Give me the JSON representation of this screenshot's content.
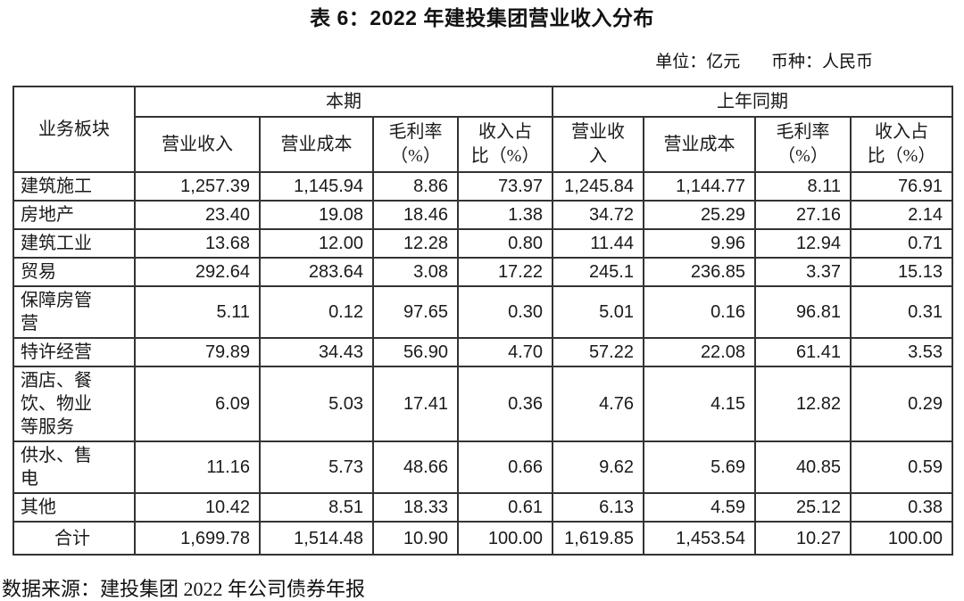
{
  "page": {
    "title": "表 6：2022 年建投集团营业收入分布",
    "unit_note": "单位：亿元",
    "currency_note": "币种：人民币",
    "source_note": "数据来源：建投集团 2022 年公司债券年报"
  },
  "table": {
    "segment_header": "业务板块",
    "groups": [
      {
        "label": "本期",
        "columns": [
          "营业收入",
          "营业成本",
          "毛利率\n（%）",
          "收入占\n比（%）"
        ]
      },
      {
        "label": "上年同期",
        "columns": [
          "营业收\n入",
          "营业成本",
          "毛利率\n（%）",
          "收入占\n比（%）"
        ]
      }
    ],
    "rows": [
      {
        "segment": "建筑施工",
        "values": [
          "1,257.39",
          "1,145.94",
          "8.86",
          "73.97",
          "1,245.84",
          "1,144.77",
          "8.11",
          "76.91"
        ]
      },
      {
        "segment": "房地产",
        "values": [
          "23.40",
          "19.08",
          "18.46",
          "1.38",
          "34.72",
          "25.29",
          "27.16",
          "2.14"
        ]
      },
      {
        "segment": "建筑工业",
        "values": [
          "13.68",
          "12.00",
          "12.28",
          "0.80",
          "11.44",
          "9.96",
          "12.94",
          "0.71"
        ]
      },
      {
        "segment": "贸易",
        "values": [
          "292.64",
          "283.64",
          "3.08",
          "17.22",
          "245.1",
          "236.85",
          "3.37",
          "15.13"
        ]
      },
      {
        "segment": "保障房管\n营",
        "values": [
          "5.11",
          "0.12",
          "97.65",
          "0.30",
          "5.01",
          "0.16",
          "96.81",
          "0.31"
        ]
      },
      {
        "segment": "特许经营",
        "values": [
          "79.89",
          "34.43",
          "56.90",
          "4.70",
          "57.22",
          "22.08",
          "61.41",
          "3.53"
        ]
      },
      {
        "segment": "酒店、餐\n饮、物业\n等服务",
        "values": [
          "6.09",
          "5.03",
          "17.41",
          "0.36",
          "4.76",
          "4.15",
          "12.82",
          "0.29"
        ]
      },
      {
        "segment": "供水、售\n电",
        "values": [
          "11.16",
          "5.73",
          "48.66",
          "0.66",
          "9.62",
          "5.69",
          "40.85",
          "0.59"
        ]
      },
      {
        "segment": "其他",
        "values": [
          "10.42",
          "8.51",
          "18.33",
          "0.61",
          "6.13",
          "4.59",
          "25.12",
          "0.38"
        ]
      }
    ],
    "total_row": {
      "segment": "合计",
      "values": [
        "1,699.78",
        "1,514.48",
        "10.90",
        "100.00",
        "1,619.85",
        "1,453.54",
        "10.27",
        "100.00"
      ]
    }
  },
  "colors": {
    "text": "#1a1a1a",
    "border": "#333333",
    "background": "#ffffff"
  }
}
